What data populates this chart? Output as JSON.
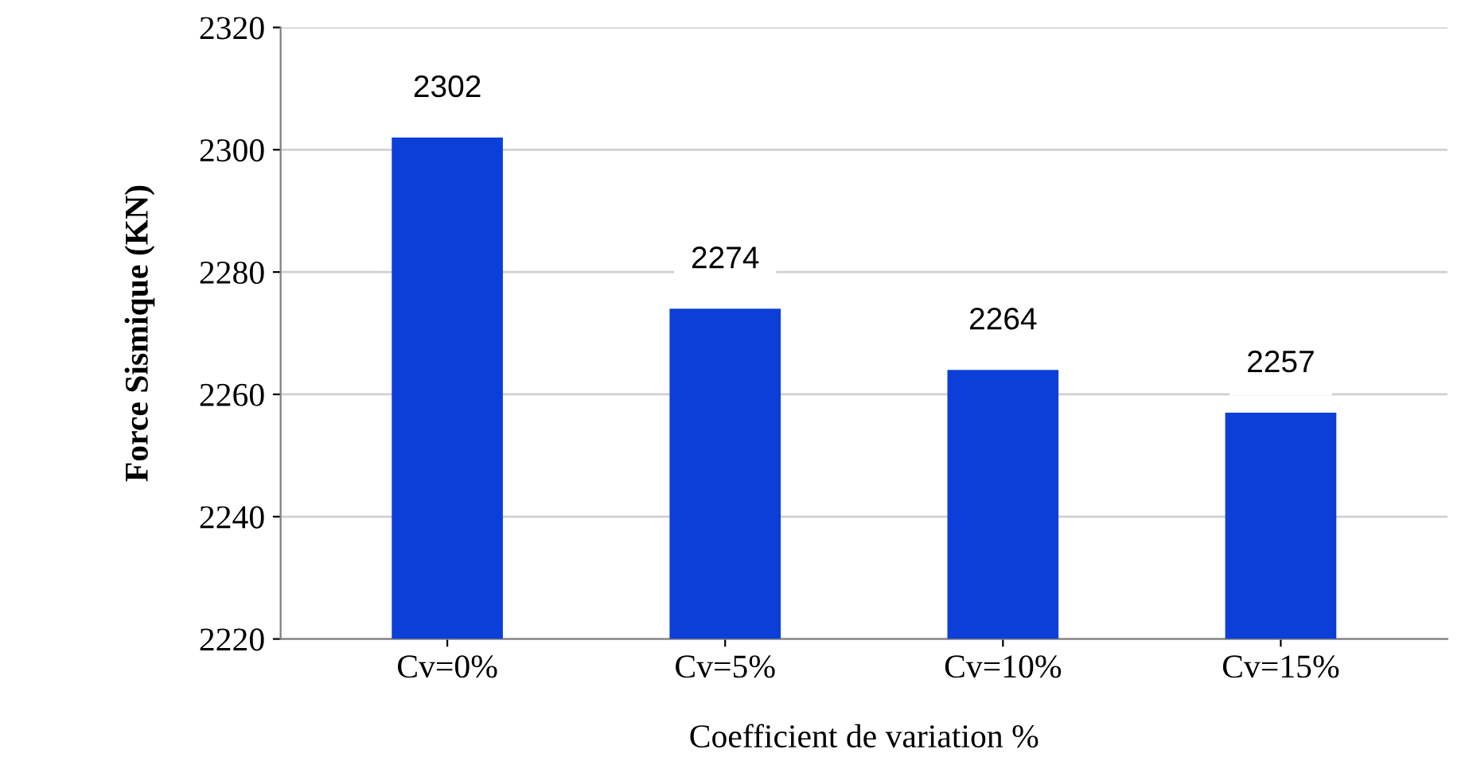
{
  "chart_data": {
    "type": "bar",
    "xlabel": "Coefficient de variation %",
    "ylabel": "Force Sismique (KN)",
    "categories": [
      "Cv=0%",
      "Cv=5%",
      "Cv=10%",
      "Cv=15%"
    ],
    "values": [
      2302,
      2274,
      2264,
      2257
    ],
    "color": "#0b3fd8",
    "ylim": [
      2220,
      2320
    ],
    "yticks": [
      2220,
      2240,
      2260,
      2280,
      2300,
      2320
    ],
    "grid": "y",
    "data_labels": true
  }
}
